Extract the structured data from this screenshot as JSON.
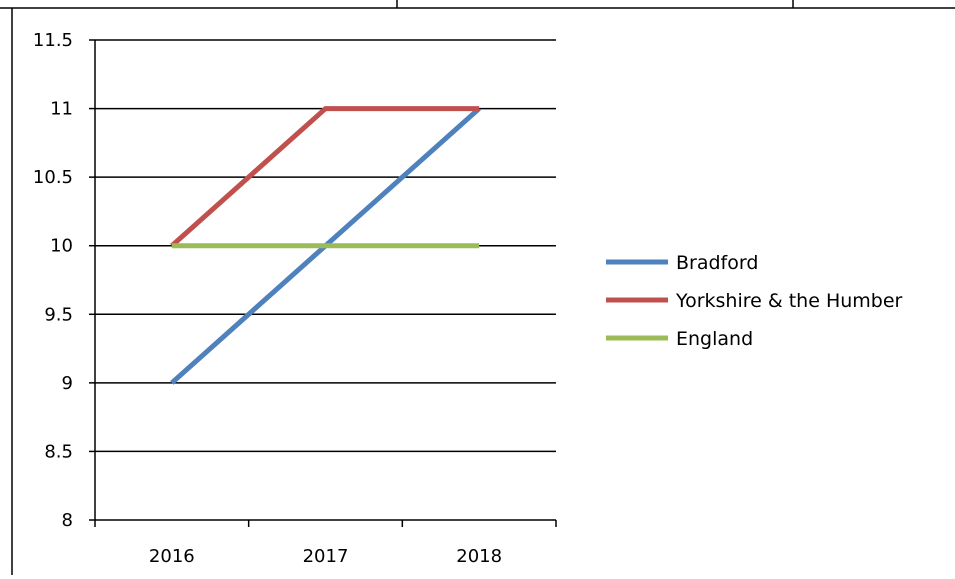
{
  "chart_data": {
    "type": "line",
    "title": "",
    "xlabel": "",
    "ylabel": "",
    "categories": [
      "2016",
      "2017",
      "2018"
    ],
    "ylim": [
      8,
      11.5
    ],
    "yticks": [
      "8",
      "8.5",
      "9",
      "9.5",
      "10",
      "10.5",
      "11",
      "11.5"
    ],
    "grid": true,
    "legend_position": "right",
    "series": [
      {
        "name": "Bradford",
        "color": "#4f81bd",
        "values": [
          9,
          10,
          11
        ]
      },
      {
        "name": "Yorkshire & the Humber",
        "color": "#c0504d",
        "values": [
          10,
          11,
          11
        ]
      },
      {
        "name": "England",
        "color": "#9bbb59",
        "values": [
          10,
          10,
          10
        ]
      }
    ]
  }
}
